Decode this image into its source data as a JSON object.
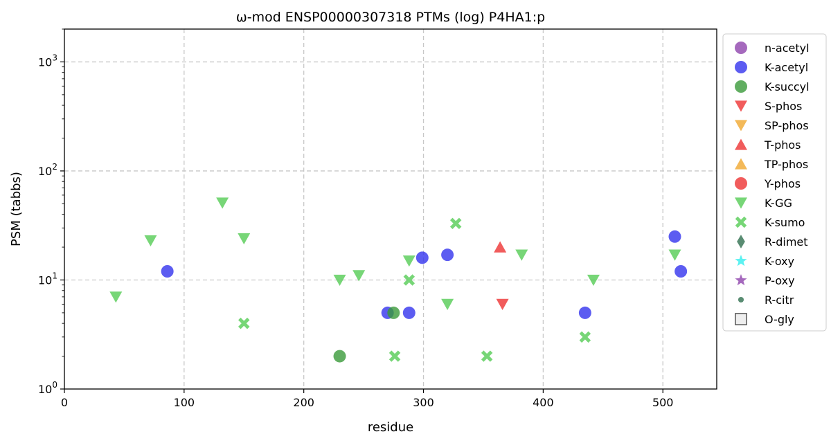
{
  "chart_data": {
    "type": "scatter",
    "title": "ω-mod ENSP00000307318 PTMs (log) P4HA1:p",
    "xlabel": "residue",
    "ylabel": "PSM (tabbs)",
    "xlim": [
      0,
      545
    ],
    "ylim": [
      1,
      2000
    ],
    "yscale": "log",
    "grid": true,
    "legend_position": "outside-right",
    "x_ticks": [
      0,
      100,
      200,
      300,
      400,
      500
    ],
    "y_ticks": [
      {
        "value": 1,
        "base": "10",
        "exp": "0"
      },
      {
        "value": 10,
        "base": "10",
        "exp": "1"
      },
      {
        "value": 100,
        "base": "10",
        "exp": "2"
      },
      {
        "value": 1000,
        "base": "10",
        "exp": "3"
      }
    ],
    "series": [
      {
        "name": "n-acetyl",
        "marker": "circle",
        "color": "#8e44ad",
        "points": []
      },
      {
        "name": "K-acetyl",
        "marker": "circle",
        "color": "#3333ee",
        "points": [
          [
            86,
            12
          ],
          [
            270,
            5
          ],
          [
            288,
            5
          ],
          [
            299,
            16
          ],
          [
            320,
            17
          ],
          [
            435,
            5
          ],
          [
            510,
            25
          ],
          [
            515,
            12
          ]
        ]
      },
      {
        "name": "K-succyl",
        "marker": "circle",
        "color": "#3a9a3a",
        "points": [
          [
            230,
            2
          ],
          [
            275,
            5
          ]
        ]
      },
      {
        "name": "S-phos",
        "marker": "triangle-down",
        "color": "#ee3333",
        "points": [
          [
            366,
            6
          ]
        ]
      },
      {
        "name": "SP-phos",
        "marker": "triangle-down",
        "color": "#f0a830",
        "points": []
      },
      {
        "name": "T-phos",
        "marker": "triangle-up",
        "color": "#ee3333",
        "points": [
          [
            364,
            20
          ]
        ]
      },
      {
        "name": "TP-phos",
        "marker": "triangle-up",
        "color": "#f0a830",
        "points": []
      },
      {
        "name": "Y-phos",
        "marker": "circle",
        "color": "#ee3333",
        "points": []
      },
      {
        "name": "K-GG",
        "marker": "triangle-down",
        "color": "#55cc55",
        "points": [
          [
            43,
            7
          ],
          [
            72,
            23
          ],
          [
            132,
            51
          ],
          [
            150,
            24
          ],
          [
            230,
            10
          ],
          [
            246,
            11
          ],
          [
            288,
            15
          ],
          [
            320,
            6
          ],
          [
            382,
            17
          ],
          [
            442,
            10
          ],
          [
            510,
            17
          ]
        ]
      },
      {
        "name": "K-sumo",
        "marker": "x",
        "color": "#55cc55",
        "points": [
          [
            150,
            4
          ],
          [
            276,
            2
          ],
          [
            288,
            10
          ],
          [
            327,
            33
          ],
          [
            353,
            2
          ],
          [
            435,
            3
          ]
        ]
      },
      {
        "name": "R-dimet",
        "marker": "diamond",
        "color": "#2f6f4f",
        "points": []
      },
      {
        "name": "K-oxy",
        "marker": "star",
        "color": "#33eeee",
        "points": []
      },
      {
        "name": "P-oxy",
        "marker": "star",
        "color": "#8e44ad",
        "points": []
      },
      {
        "name": "R-citr",
        "marker": "small-circle",
        "color": "#2f6f4f",
        "points": []
      },
      {
        "name": "O-gly",
        "marker": "square-open",
        "color": "#555555",
        "points": []
      }
    ]
  }
}
